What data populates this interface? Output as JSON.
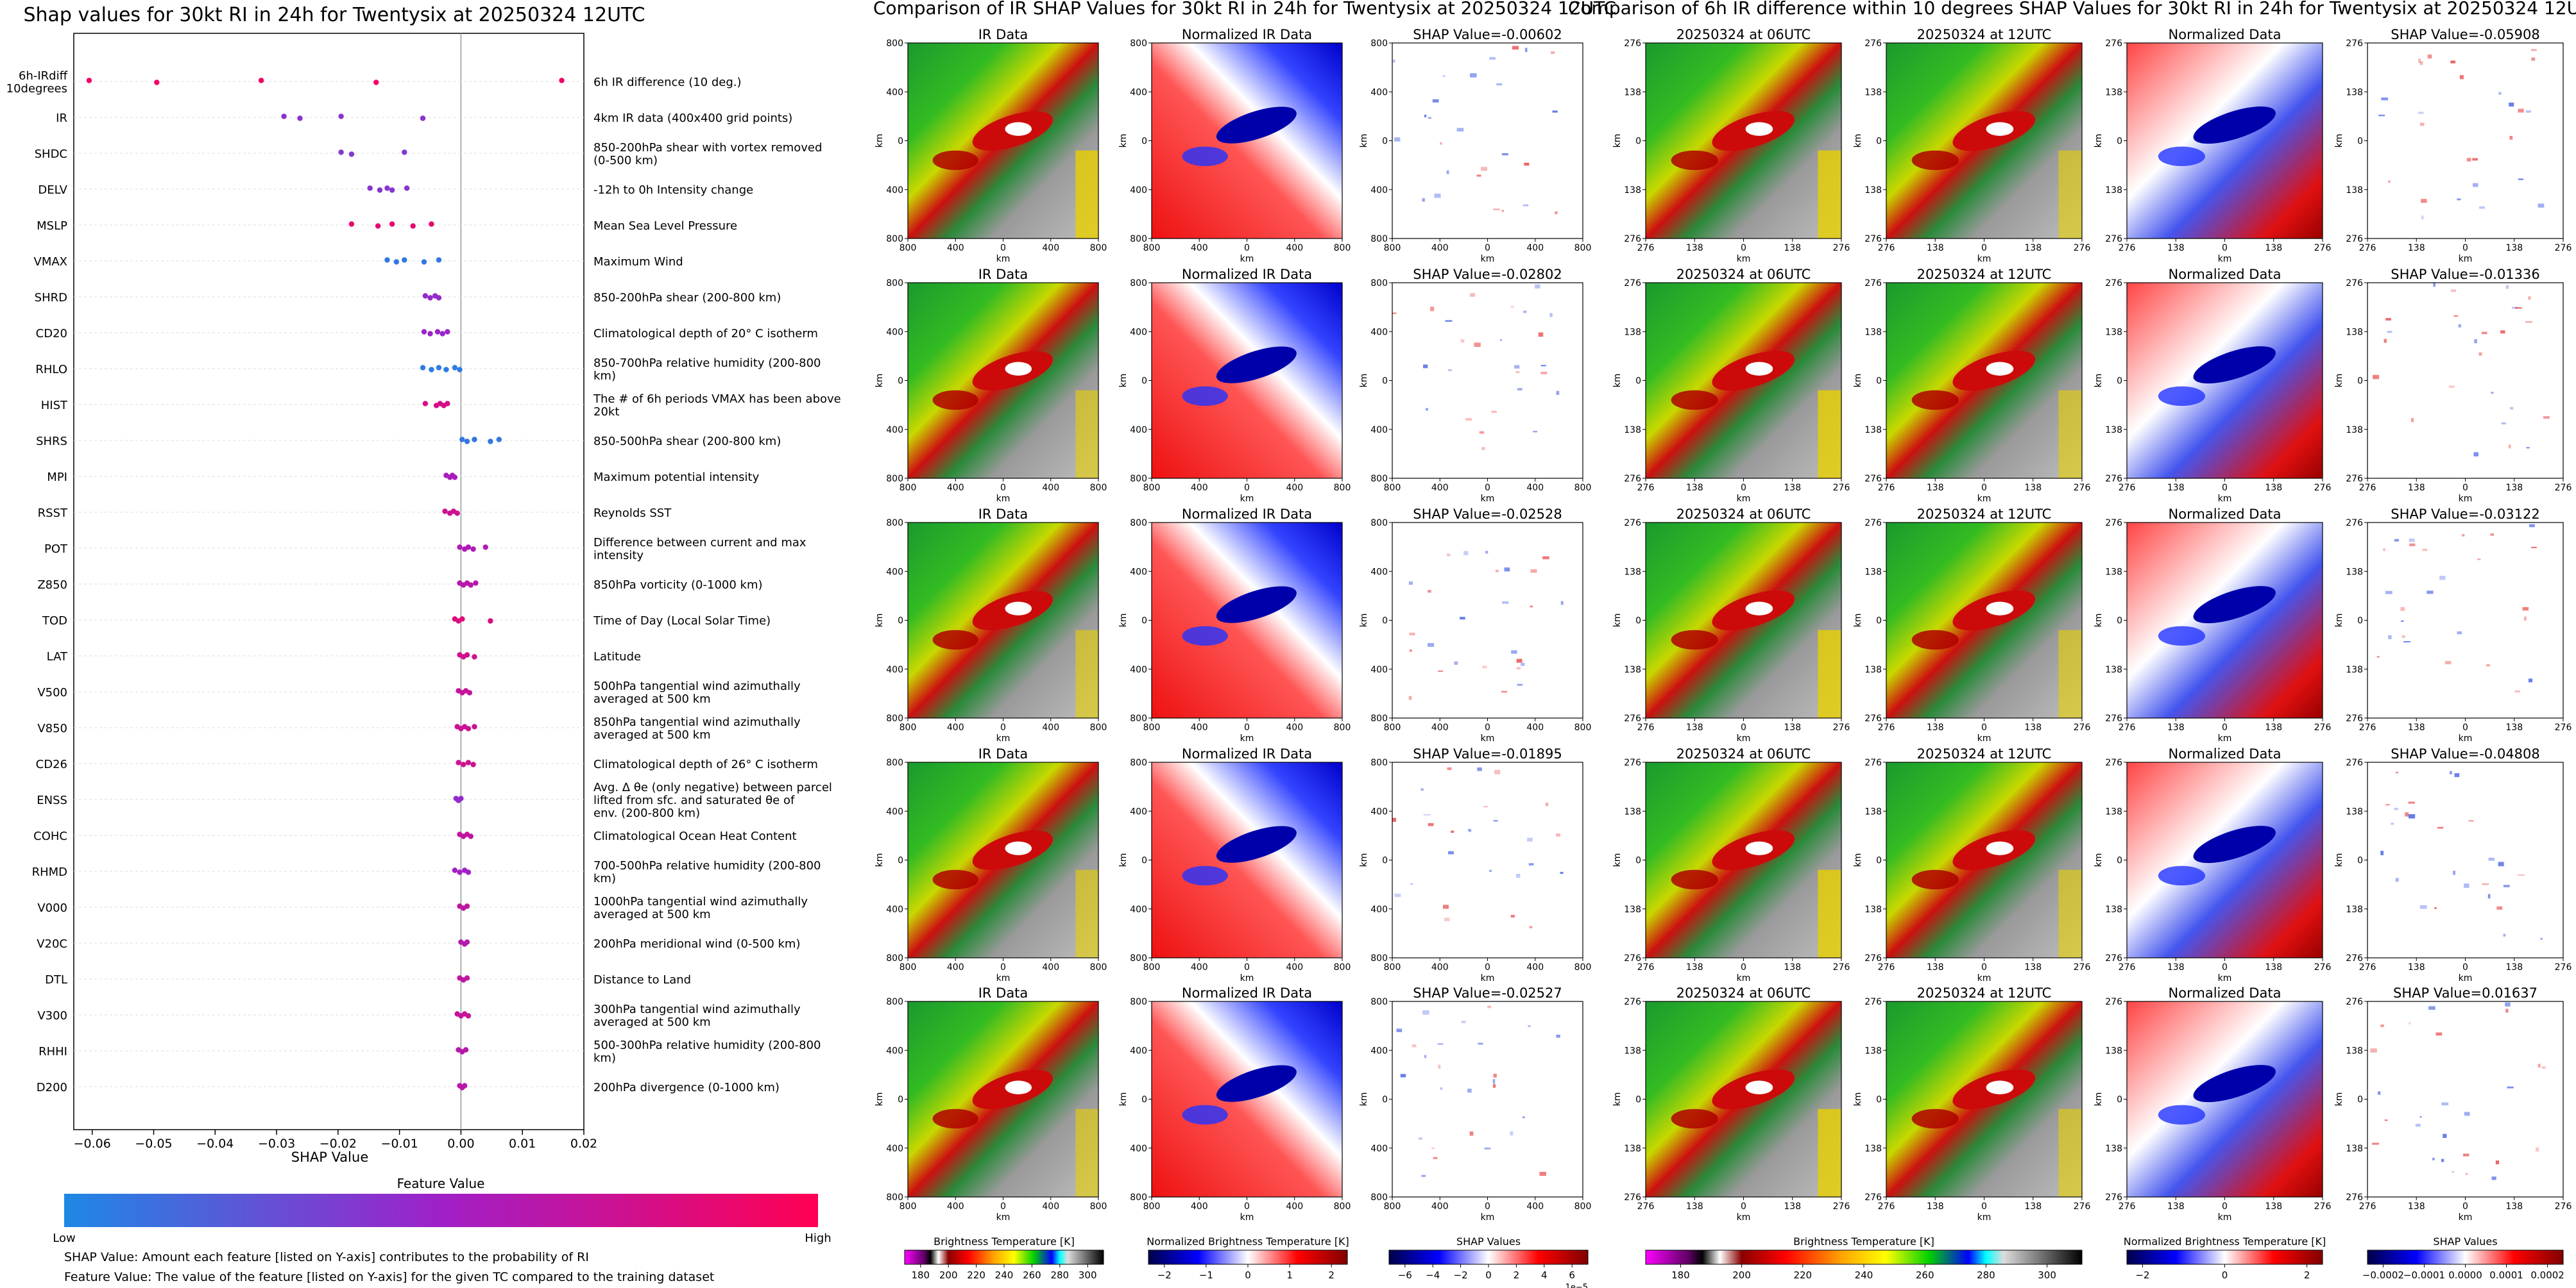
{
  "shap_chart": {
    "title": "Shap values for 30kt RI in 24h for Twentysix at 20250324 12UTC",
    "xlabel": "SHAP Value",
    "xlim": [
      -0.063,
      0.02
    ],
    "xticks": [
      -0.06,
      -0.05,
      -0.04,
      -0.03,
      -0.02,
      -0.01,
      0.0,
      0.01,
      0.02
    ],
    "xtick_labels": [
      "−0.06",
      "−0.05",
      "−0.04",
      "−0.03",
      "−0.02",
      "−0.01",
      "0.00",
      "0.01",
      "0.02"
    ],
    "features": [
      {
        "code": "6h-IRdiff 10degrees",
        "desc": "6h IR difference (10 deg.)",
        "fv": 0.92,
        "values": [
          -0.0605,
          -0.0495,
          -0.0325,
          -0.0138,
          0.0164
        ]
      },
      {
        "code": "IR",
        "desc": "4km IR data (400x400 grid points)",
        "fv": 0.42,
        "values": [
          -0.0288,
          -0.0262,
          -0.0195,
          -0.0062
        ]
      },
      {
        "code": "SHDC",
        "desc": "850-200hPa shear with vortex removed (0-500 km)",
        "fv": 0.38,
        "values": [
          -0.0195,
          -0.0178,
          -0.0092
        ]
      },
      {
        "code": "DELV",
        "desc": "-12h to 0h Intensity change",
        "fv": 0.4,
        "values": [
          -0.0148,
          -0.0132,
          -0.012,
          -0.0112,
          -0.0088
        ]
      },
      {
        "code": "MSLP",
        "desc": "Mean Sea Level Pressure",
        "fv": 0.88,
        "values": [
          -0.0178,
          -0.0135,
          -0.0112,
          -0.0078,
          -0.0048
        ]
      },
      {
        "code": "VMAX",
        "desc": "Maximum Wind",
        "fv": 0.08,
        "values": [
          -0.012,
          -0.0105,
          -0.0092,
          -0.006,
          -0.0036
        ]
      },
      {
        "code": "SHRD",
        "desc": "850-200hPa shear (200-800 km)",
        "fv": 0.45,
        "values": [
          -0.0058,
          -0.005,
          -0.0042,
          -0.0036
        ]
      },
      {
        "code": "CD20",
        "desc": "Climatological depth of 20° C isotherm",
        "fv": 0.48,
        "values": [
          -0.006,
          -0.005,
          -0.0038,
          -0.003,
          -0.0022
        ]
      },
      {
        "code": "RHLO",
        "desc": "850-700hPa relative humidity (200-800 km)",
        "fv": 0.06,
        "values": [
          -0.0062,
          -0.0048,
          -0.0036,
          -0.0024,
          -0.001,
          -0.0002
        ]
      },
      {
        "code": "HIST",
        "desc": "The # of 6h periods VMAX has been above 20kt",
        "fv": 0.78,
        "values": [
          -0.0058,
          -0.004,
          -0.0034,
          -0.0028,
          -0.0022
        ]
      },
      {
        "code": "SHRS",
        "desc": "850-500hPa shear (200-800 km)",
        "fv": 0.08,
        "values": [
          0.0002,
          0.001,
          0.0022,
          0.0048,
          0.0062
        ]
      },
      {
        "code": "MPI",
        "desc": "Maximum potential intensity",
        "fv": 0.55,
        "values": [
          -0.0024,
          -0.0018,
          -0.0014,
          -0.001
        ]
      },
      {
        "code": "RSST",
        "desc": "Reynolds SST",
        "fv": 0.72,
        "values": [
          -0.0026,
          -0.0018,
          -0.0012,
          -0.0006
        ]
      },
      {
        "code": "POT",
        "desc": "Difference between current and max intensity",
        "fv": 0.58,
        "values": [
          -0.0002,
          0.0006,
          0.0012,
          0.002,
          0.004
        ]
      },
      {
        "code": "Z850",
        "desc": "850hPa vorticity (0-1000 km)",
        "fv": 0.62,
        "values": [
          -0.0002,
          0.0004,
          0.001,
          0.0016,
          0.0024
        ]
      },
      {
        "code": "TOD",
        "desc": "Time of Day (Local Solar Time)",
        "fv": 0.82,
        "values": [
          -0.001,
          -0.0004,
          0.0002,
          0.0048
        ]
      },
      {
        "code": "LAT",
        "desc": "Latitude",
        "fv": 0.75,
        "values": [
          -0.0002,
          0.0004,
          0.001,
          0.0022
        ]
      },
      {
        "code": "V500",
        "desc": "500hPa tangential wind azimuthally averaged at 500 km",
        "fv": 0.7,
        "values": [
          -0.0004,
          0.0002,
          0.0008,
          0.0014
        ]
      },
      {
        "code": "V850",
        "desc": "850hPa tangential wind azimuthally averaged at 500 km",
        "fv": 0.72,
        "values": [
          -0.0006,
          0.0,
          0.0006,
          0.0012,
          0.0022
        ]
      },
      {
        "code": "CD26",
        "desc": "Climatological depth of 26° C isotherm",
        "fv": 0.74,
        "values": [
          -0.0004,
          0.0004,
          0.0012,
          0.002
        ]
      },
      {
        "code": "ENSS",
        "desc": "Avg. Δ θe (only negative) between parcel lifted from sfc. and saturated θe of env. (200-800 km)",
        "fv": 0.45,
        "values": [
          -0.0008,
          -0.0004,
          0.0
        ]
      },
      {
        "code": "COHC",
        "desc": "Climatological Ocean Heat Content",
        "fv": 0.68,
        "values": [
          -0.0002,
          0.0004,
          0.001,
          0.0016
        ]
      },
      {
        "code": "RHMD",
        "desc": "700-500hPa relative humidity (200-800 km)",
        "fv": 0.5,
        "values": [
          -0.001,
          -0.0002,
          0.0006,
          0.0012
        ]
      },
      {
        "code": "V000",
        "desc": "1000hPa tangential wind azimuthally averaged at 500 km",
        "fv": 0.66,
        "values": [
          -0.0002,
          0.0004,
          0.001
        ]
      },
      {
        "code": "V20C",
        "desc": "200hPa meridional wind (0-500 km)",
        "fv": 0.6,
        "values": [
          0.0,
          0.0006,
          0.001
        ]
      },
      {
        "code": "DTL",
        "desc": "Distance to Land",
        "fv": 0.66,
        "values": [
          -0.0002,
          0.0004,
          0.001
        ]
      },
      {
        "code": "V300",
        "desc": "300hPa tangential wind azimuthally averaged at 500 km",
        "fv": 0.7,
        "values": [
          -0.0006,
          0.0,
          0.0006,
          0.0012
        ]
      },
      {
        "code": "RHHI",
        "desc": "500-300hPa relative humidity (200-800 km)",
        "fv": 0.62,
        "values": [
          -0.0004,
          0.0002,
          0.0008
        ]
      },
      {
        "code": "D200",
        "desc": "200hPa divergence (0-1000 km)",
        "fv": 0.64,
        "values": [
          -0.0002,
          0.0002,
          0.0006
        ]
      }
    ],
    "colorbar": {
      "title": "Feature Value",
      "low": "Low",
      "high": "High",
      "low_color": "#1e88e5",
      "mid_color": "#a020c8",
      "high_color": "#ff0052"
    },
    "notes": [
      "SHAP Value: Amount each feature [listed on Y-axis] contributes to the probability of RI",
      "Feature Value: The value of the feature [listed on Y-axis] for the given TC compared to the training dataset"
    ]
  },
  "ir_panel": {
    "title": "Comparison of IR SHAP Values for 30kt RI in 24h for Twentysix at 20250324 12UTC",
    "subplot_titles": [
      "IR Data",
      "Normalized IR Data"
    ],
    "shap_titles": [
      "SHAP Value=-0.00602",
      "SHAP Value=-0.02802",
      "SHAP Value=-0.02528",
      "SHAP Value=-0.01895",
      "SHAP Value=-0.02527"
    ],
    "axis_label": "km",
    "ticks": [
      "800",
      "400",
      "0",
      "400",
      "800"
    ],
    "colorbars": [
      {
        "label": "Brightness Temperature [K]",
        "ticks": [
          "180",
          "200",
          "220",
          "240",
          "260",
          "280",
          "300"
        ]
      },
      {
        "label": "Normalized Brightness Temperature [K]",
        "ticks": [
          "−2",
          "−1",
          "0",
          "1",
          "2"
        ]
      },
      {
        "label": "SHAP Values",
        "ticks": [
          "−6",
          "−4",
          "−2",
          "0",
          "2",
          "4",
          "6"
        ],
        "offset": "1e−5"
      }
    ]
  },
  "diff_panel": {
    "title": "Comparison of 6h IR difference within 10 degrees SHAP Values for 30kt RI in 24h for Twentysix at 20250324 12UTC",
    "subplot_titles": [
      "20250324 at 06UTC",
      "20250324 at 12UTC",
      "Normalized Data"
    ],
    "shap_titles": [
      "SHAP Value=-0.05908",
      "SHAP Value=-0.01336",
      "SHAP Value=-0.03122",
      "SHAP Value=-0.04808",
      "SHAP Value=0.01637"
    ],
    "axis_label": "km",
    "ticks": [
      "276",
      "138",
      "0",
      "138",
      "276"
    ],
    "colorbars": [
      {
        "label": "Brightness Temperature [K]",
        "ticks": [
          "180",
          "200",
          "220",
          "240",
          "260",
          "280",
          "300"
        ]
      },
      {
        "label": "Normalized Brightness Temperature [K]",
        "ticks": [
          "−2",
          "0",
          "2"
        ]
      },
      {
        "label": "SHAP Values",
        "ticks": [
          "−0.0002",
          "−0.0001",
          "0.0000",
          "0.0001",
          "0.0002"
        ]
      }
    ]
  }
}
